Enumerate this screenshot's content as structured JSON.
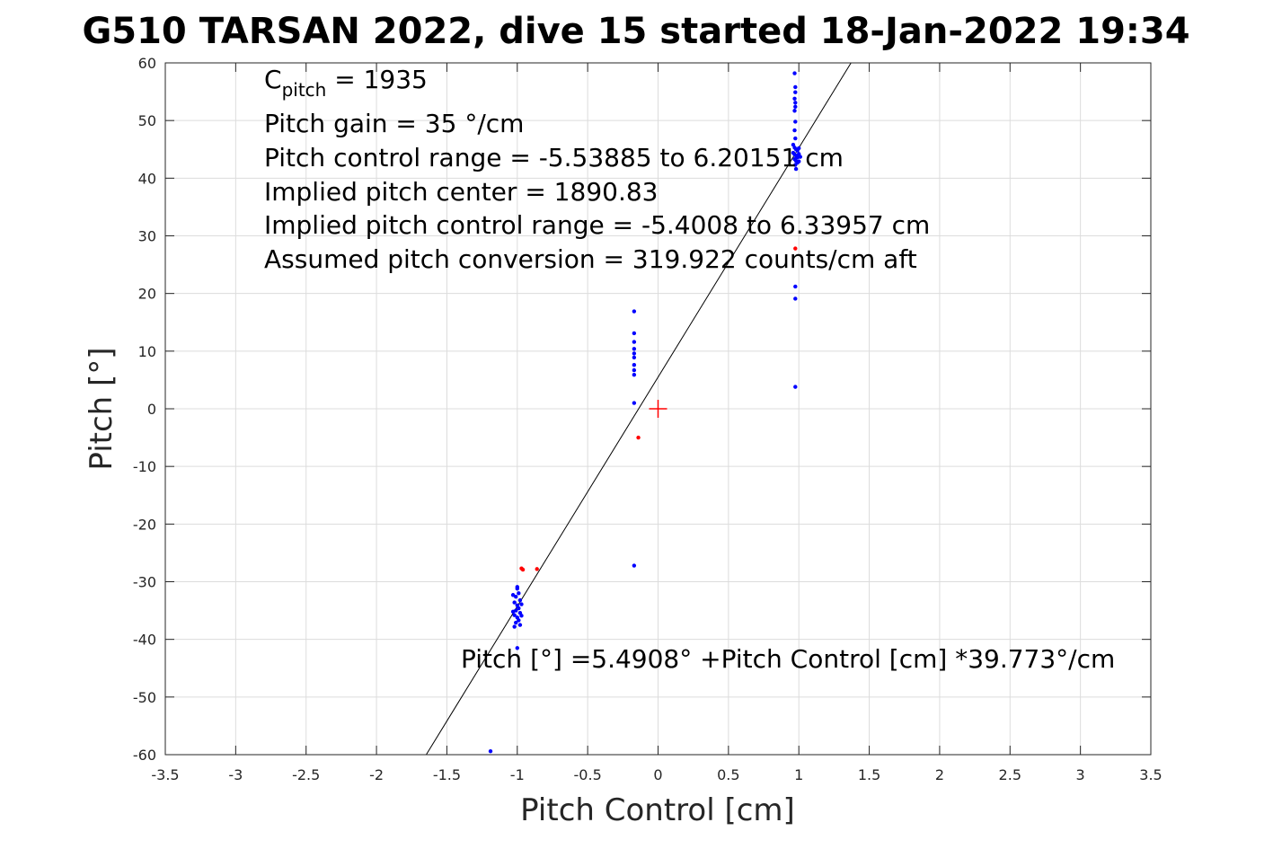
{
  "chart_data": {
    "type": "scatter",
    "title": "G510 TARSAN 2022, dive 15 started 18-Jan-2022 19:34",
    "xlabel": "Pitch Control [cm]",
    "ylabel": "Pitch [°]",
    "xlim": [
      -3.5,
      3.5
    ],
    "ylim": [
      -60,
      60
    ],
    "xticks": [
      -3.5,
      -3,
      -2.5,
      -2,
      -1.5,
      -1,
      -0.5,
      0,
      0.5,
      1,
      1.5,
      2,
      2.5,
      3,
      3.5
    ],
    "xtick_labels": [
      "-3.5",
      "-3",
      "-2.5",
      "-2",
      "-1.5",
      "-1",
      "-0.5",
      "0",
      "0.5",
      "1",
      "1.5",
      "2",
      "2.5",
      "3",
      "3.5"
    ],
    "yticks": [
      -60,
      -50,
      -40,
      -30,
      -20,
      -10,
      0,
      10,
      20,
      30,
      40,
      50,
      60
    ],
    "ytick_labels": [
      "-60",
      "-50",
      "-40",
      "-30",
      "-20",
      "-10",
      "0",
      "10",
      "20",
      "30",
      "40",
      "50",
      "60"
    ],
    "grid": true,
    "annotations": {
      "c_pitch_main": "C",
      "c_pitch_sub": "pitch",
      "c_pitch_rest": " = 1935",
      "lines": [
        "Pitch gain = 35 °/cm",
        "Pitch control range = -5.53885 to 6.20151 cm",
        "Implied pitch center = 1890.83",
        "Implied pitch control range = -5.4008 to 6.33957 cm",
        "Assumed pitch conversion = 319.922 counts/cm aft"
      ],
      "fit_equation": "Pitch [°] =5.4908° +Pitch Control [cm] *39.773°/cm"
    },
    "fit_line": {
      "intercept": 5.4908,
      "slope": 39.773,
      "color": "#000000"
    },
    "center_marker": {
      "x": 0,
      "y": 0,
      "color": "#ff0000"
    },
    "series": [
      {
        "color": "#0000ff",
        "points": [
          [
            0.97,
            58.2
          ],
          [
            0.975,
            55.8
          ],
          [
            0.975,
            54.9
          ],
          [
            0.97,
            53.8
          ],
          [
            0.975,
            53.1
          ],
          [
            0.975,
            52.4
          ],
          [
            0.97,
            51.7
          ],
          [
            0.975,
            49.8
          ],
          [
            0.97,
            48.3
          ],
          [
            0.975,
            46.9
          ],
          [
            0.96,
            45.8
          ],
          [
            0.97,
            45.3
          ],
          [
            0.98,
            45.0
          ],
          [
            0.99,
            44.8
          ],
          [
            1.0,
            45.2
          ],
          [
            0.96,
            44.4
          ],
          [
            0.97,
            44.1
          ],
          [
            0.98,
            43.9
          ],
          [
            0.99,
            43.6
          ],
          [
            1.0,
            44.2
          ],
          [
            1.01,
            43.7
          ],
          [
            0.97,
            43.3
          ],
          [
            0.98,
            43.0
          ],
          [
            0.99,
            42.7
          ],
          [
            1.0,
            42.9
          ],
          [
            0.975,
            42.3
          ],
          [
            0.98,
            41.6
          ],
          [
            0.975,
            21.2
          ],
          [
            0.975,
            19.1
          ],
          [
            0.975,
            3.8
          ],
          [
            -0.17,
            16.9
          ],
          [
            -0.17,
            13.1
          ],
          [
            -0.17,
            11.6
          ],
          [
            -0.17,
            10.4
          ],
          [
            -0.17,
            9.6
          ],
          [
            -0.17,
            8.9
          ],
          [
            -0.17,
            7.6
          ],
          [
            -0.17,
            6.7
          ],
          [
            -0.17,
            5.9
          ],
          [
            -0.17,
            1.0
          ],
          [
            -0.17,
            -27.2
          ],
          [
            -1.0,
            -31.2
          ],
          [
            -0.99,
            -32.0
          ],
          [
            -1.01,
            -32.6
          ],
          [
            -0.98,
            -33.2
          ],
          [
            -1.02,
            -33.6
          ],
          [
            -1.0,
            -34.1
          ],
          [
            -0.99,
            -34.6
          ],
          [
            -1.01,
            -35.0
          ],
          [
            -0.98,
            -35.4
          ],
          [
            -1.02,
            -35.8
          ],
          [
            -1.0,
            -36.2
          ],
          [
            -0.99,
            -36.7
          ],
          [
            -1.01,
            -37.1
          ],
          [
            -0.98,
            -37.5
          ],
          [
            -1.02,
            -37.8
          ],
          [
            -1.03,
            -32.3
          ],
          [
            -0.97,
            -33.9
          ],
          [
            -0.97,
            -35.9
          ],
          [
            -1.03,
            -35.2
          ],
          [
            -1.0,
            -30.9
          ],
          [
            -1.0,
            -41.5
          ],
          [
            -1.19,
            -59.4
          ]
        ]
      },
      {
        "color": "#ff0000",
        "points": [
          [
            0.975,
            27.8
          ],
          [
            -0.14,
            -5.0
          ],
          [
            -0.97,
            -27.7
          ],
          [
            -0.96,
            -27.9
          ],
          [
            -0.86,
            -27.8
          ]
        ]
      }
    ]
  }
}
